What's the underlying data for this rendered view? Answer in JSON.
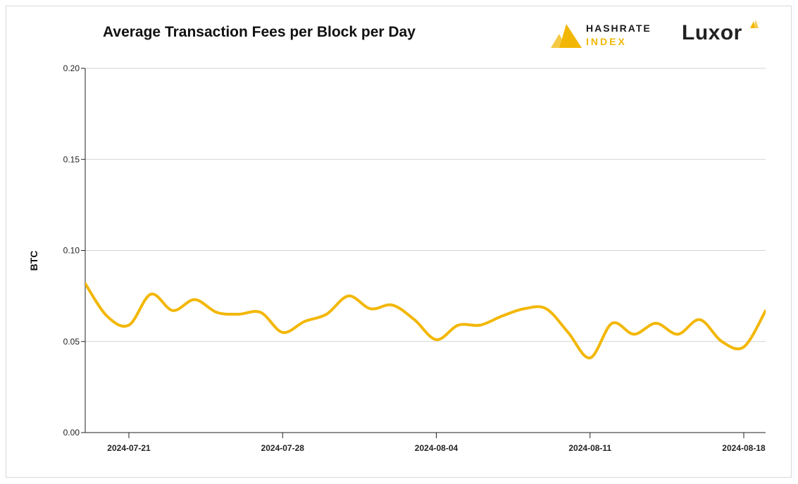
{
  "brand": {
    "hashrate_top": "HASHRATE",
    "hashrate_bottom": "INDEX",
    "luxor": "Luxor",
    "accent_color": "#f2b705"
  },
  "chart_data": {
    "type": "line",
    "title": "Average Transaction Fees per Block per Day",
    "xlabel": "",
    "ylabel": "BTC",
    "xlim": [
      "2024-07-19",
      "2024-08-18"
    ],
    "ylim": [
      0,
      0.2
    ],
    "y_ticks": [
      0.0,
      0.05,
      0.1,
      0.15,
      0.2
    ],
    "y_tick_labels": [
      "0.00",
      "0.05",
      "0.10",
      "0.15",
      "0.20"
    ],
    "x_ticks": [
      "2024-07-21",
      "2024-07-28",
      "2024-08-04",
      "2024-08-11",
      "2024-08-18"
    ],
    "grid": true,
    "legend": "none",
    "series": [
      {
        "color": "#f2b705",
        "x": [
          "2024-07-19",
          "2024-07-20",
          "2024-07-21",
          "2024-07-22",
          "2024-07-23",
          "2024-07-24",
          "2024-07-25",
          "2024-07-26",
          "2024-07-27",
          "2024-07-28",
          "2024-07-29",
          "2024-07-30",
          "2024-07-31",
          "2024-08-01",
          "2024-08-02",
          "2024-08-03",
          "2024-08-04",
          "2024-08-05",
          "2024-08-06",
          "2024-08-07",
          "2024-08-08",
          "2024-08-09",
          "2024-08-10",
          "2024-08-11",
          "2024-08-12",
          "2024-08-13",
          "2024-08-14",
          "2024-08-15",
          "2024-08-16",
          "2024-08-17",
          "2024-08-18",
          "2024-08-19"
        ],
        "values": [
          0.082,
          0.064,
          0.059,
          0.076,
          0.067,
          0.073,
          0.066,
          0.065,
          0.066,
          0.055,
          0.061,
          0.065,
          0.075,
          0.068,
          0.07,
          0.062,
          0.051,
          0.059,
          0.059,
          0.064,
          0.068,
          0.068,
          0.055,
          0.041,
          0.06,
          0.054,
          0.06,
          0.054,
          0.062,
          0.05,
          0.047,
          0.067
        ]
      }
    ]
  }
}
